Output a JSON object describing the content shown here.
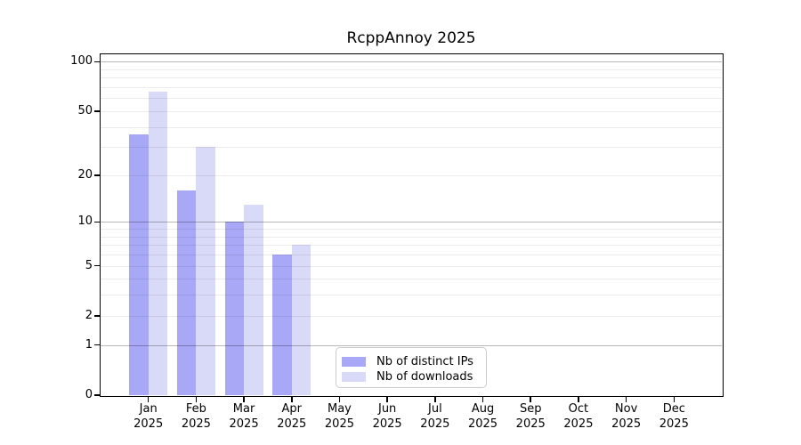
{
  "chart_data": {
    "type": "bar",
    "title": "RcppAnnoy 2025",
    "xlabel": "",
    "ylabel": "",
    "scale": "log1p",
    "ylim": [
      0,
      111
    ],
    "grid": true,
    "y_ticks": [
      0,
      1,
      2,
      5,
      10,
      20,
      50,
      100
    ],
    "major_gridlines": [
      1,
      10,
      100
    ],
    "minor_gridlines": [
      2,
      3,
      4,
      5,
      6,
      7,
      8,
      9,
      20,
      30,
      40,
      50,
      60,
      70,
      80,
      90
    ],
    "categories": [
      "Jan",
      "Feb",
      "Mar",
      "Apr",
      "May",
      "Jun",
      "Jul",
      "Aug",
      "Sep",
      "Oct",
      "Nov",
      "Dec"
    ],
    "year_label": "2025",
    "series": [
      {
        "name": "Nb of distinct IPs",
        "slug": "distinct-ips",
        "color": "#a8a8f7",
        "values": [
          36,
          16,
          10,
          6,
          0,
          0,
          0,
          0,
          0,
          0,
          0,
          0
        ]
      },
      {
        "name": "Nb of downloads",
        "slug": "downloads",
        "color": "#d9d9f8",
        "values": [
          66,
          30,
          13,
          7,
          0,
          0,
          0,
          0,
          0,
          0,
          0,
          0
        ]
      }
    ],
    "legend": {
      "position": "bottom-center"
    },
    "colors": {
      "background": "#ffffff",
      "spine": "#000000",
      "text": "#000000",
      "major_grid": "rgba(0,0,0,0.28)",
      "minor_grid": "rgba(0,0,0,0.08)"
    }
  }
}
